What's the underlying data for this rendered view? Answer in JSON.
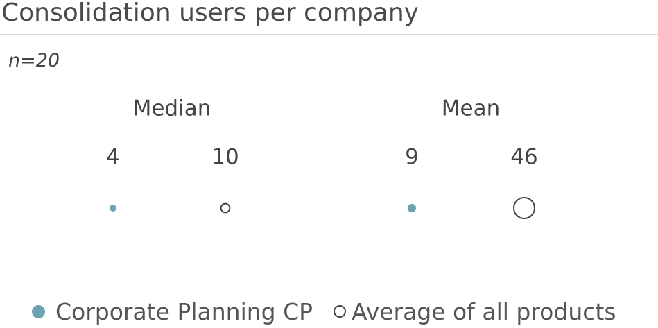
{
  "title": "Consolidation users per company",
  "subtitle": "n=20",
  "colors": {
    "company": "#6ba3b3",
    "average_stroke": "#444444",
    "text": "#444444"
  },
  "chart_data": {
    "type": "scatter",
    "title": "Consolidation users per company",
    "subtitle": "n=20",
    "groups": [
      "Median",
      "Mean"
    ],
    "series": [
      {
        "name": "Corporate Planning CP",
        "style": "filled",
        "values": [
          4,
          9
        ]
      },
      {
        "name": "Average of all products",
        "style": "outline",
        "values": [
          10,
          46
        ]
      }
    ],
    "marker_size_encodes": "value",
    "legend_position": "bottom"
  },
  "legend": [
    {
      "label": "Corporate Planning CP",
      "style": "filled"
    },
    {
      "label": "Average of all products",
      "style": "outline"
    }
  ]
}
